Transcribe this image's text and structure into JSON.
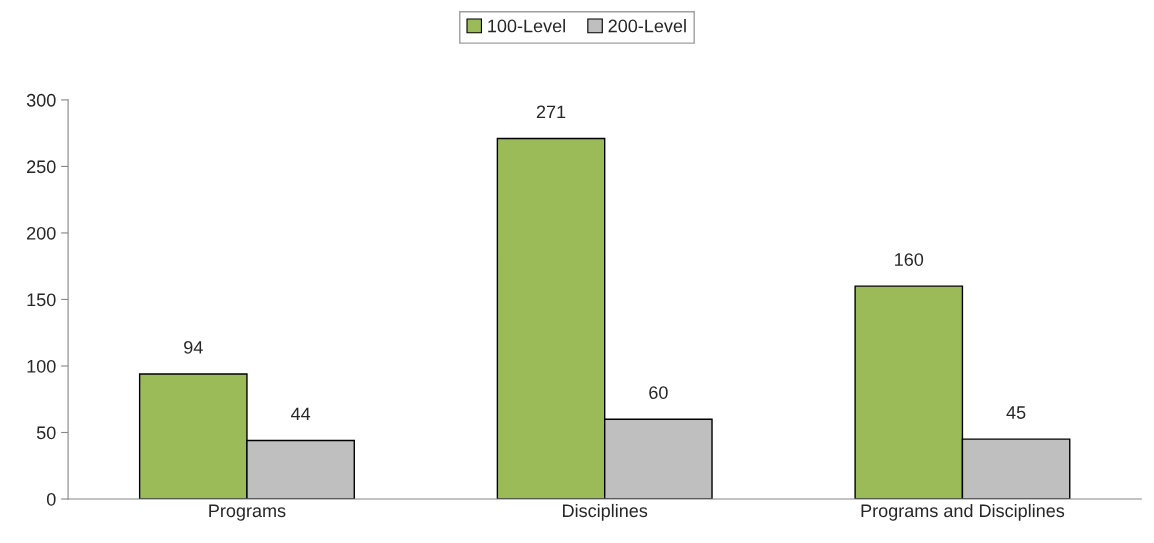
{
  "chart_data": {
    "type": "bar",
    "categories": [
      "Programs",
      "Disciplines",
      "Programs and Disciplines"
    ],
    "series": [
      {
        "name": "100-Level",
        "color": "#9bbb59",
        "values": [
          94,
          271,
          160
        ]
      },
      {
        "name": "200-Level",
        "color": "#bfbfbf",
        "values": [
          44,
          60,
          45
        ]
      }
    ],
    "ylim": [
      0,
      300
    ],
    "yticks": [
      0,
      50,
      100,
      150,
      200,
      250,
      300
    ],
    "data_labels": true,
    "grid": false,
    "legend": "top"
  }
}
